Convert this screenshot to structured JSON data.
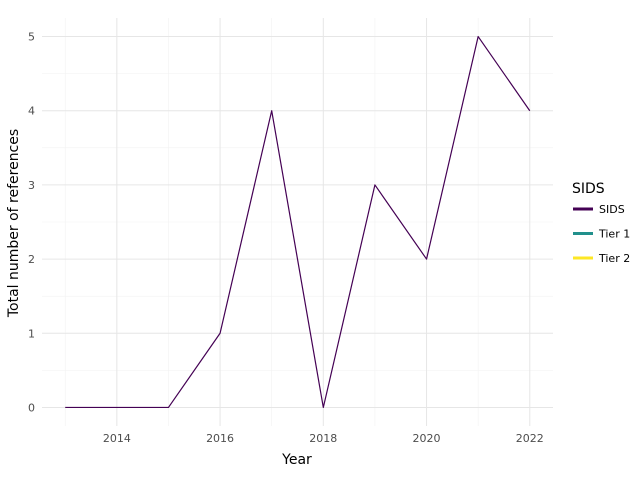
{
  "chart_data": {
    "type": "line",
    "xlabel": "Year",
    "ylabel": "Total number of references",
    "xlim": [
      2012.55,
      2022.45
    ],
    "ylim": [
      -0.25,
      5.25
    ],
    "x_ticks": [
      2014,
      2016,
      2018,
      2020,
      2022
    ],
    "y_ticks": [
      0,
      1,
      2,
      3,
      4,
      5
    ],
    "grid": true,
    "legend": {
      "title": "SIDS",
      "position": "right",
      "entries": [
        {
          "name": "SIDS",
          "color": "#440154"
        },
        {
          "name": "Tier 1",
          "color": "#21908C"
        },
        {
          "name": "Tier 2",
          "color": "#FDE725"
        }
      ]
    },
    "series": [
      {
        "name": "SIDS",
        "color": "#440154",
        "x": [
          2013,
          2014,
          2015,
          2016,
          2017,
          2018,
          2019,
          2020,
          2021,
          2022
        ],
        "y": [
          0,
          0,
          0,
          1,
          4,
          0,
          3,
          2,
          5,
          4
        ]
      }
    ]
  }
}
